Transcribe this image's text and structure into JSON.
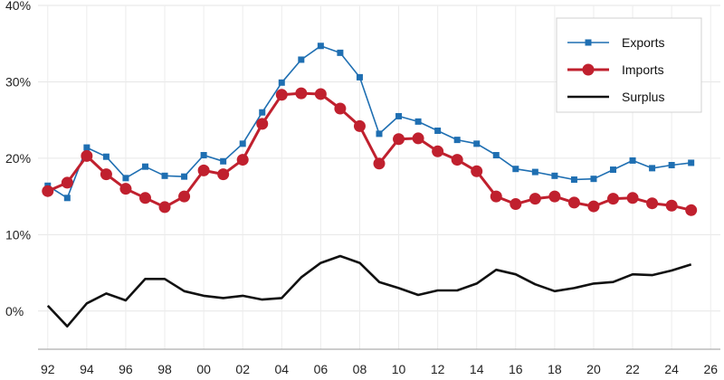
{
  "chart_data": {
    "type": "line",
    "title": "",
    "xlabel": "",
    "ylabel": "",
    "x": [
      1992,
      1993,
      1994,
      1995,
      1996,
      1997,
      1998,
      1999,
      2000,
      2001,
      2002,
      2003,
      2004,
      2005,
      2006,
      2007,
      2008,
      2009,
      2010,
      2011,
      2012,
      2013,
      2014,
      2015,
      2016,
      2017,
      2018,
      2019,
      2020,
      2021,
      2022,
      2023,
      2024,
      2025
    ],
    "xlim": [
      1991.5,
      2026.5
    ],
    "ylim": [
      -5,
      40
    ],
    "y_ticks": [
      {
        "value": 0,
        "label": "0%"
      },
      {
        "value": 10,
        "label": "10%"
      },
      {
        "value": 20,
        "label": "20%"
      },
      {
        "value": 30,
        "label": "30%"
      },
      {
        "value": 40,
        "label": "40%"
      }
    ],
    "x_ticks": [
      {
        "value": 1992,
        "label": "92"
      },
      {
        "value": 1994,
        "label": "94"
      },
      {
        "value": 1996,
        "label": "96"
      },
      {
        "value": 1998,
        "label": "98"
      },
      {
        "value": 2000,
        "label": "00"
      },
      {
        "value": 2002,
        "label": "02"
      },
      {
        "value": 2004,
        "label": "04"
      },
      {
        "value": 2006,
        "label": "06"
      },
      {
        "value": 2008,
        "label": "08"
      },
      {
        "value": 2010,
        "label": "10"
      },
      {
        "value": 2012,
        "label": "12"
      },
      {
        "value": 2014,
        "label": "14"
      },
      {
        "value": 2016,
        "label": "16"
      },
      {
        "value": 2018,
        "label": "18"
      },
      {
        "value": 2020,
        "label": "20"
      },
      {
        "value": 2022,
        "label": "22"
      },
      {
        "value": 2024,
        "label": "24"
      },
      {
        "value": 2026,
        "label": "26"
      }
    ],
    "grid": true,
    "legend_position": "top-right",
    "series": [
      {
        "name": "Exports",
        "color": "#1f6fb2",
        "marker": "square",
        "values": [
          16.4,
          14.8,
          21.4,
          20.2,
          17.4,
          18.9,
          17.7,
          17.6,
          20.4,
          19.6,
          21.9,
          26.0,
          29.9,
          32.9,
          34.7,
          33.8,
          30.6,
          23.2,
          25.5,
          24.8,
          23.6,
          22.4,
          21.9,
          20.4,
          18.6,
          18.2,
          17.7,
          17.2,
          17.3,
          18.5,
          19.7,
          18.7,
          19.1,
          19.4
        ]
      },
      {
        "name": "Imports",
        "color": "#c0202e",
        "marker": "circle",
        "values": [
          15.7,
          16.8,
          20.3,
          17.9,
          16.0,
          14.8,
          13.6,
          15.0,
          18.4,
          17.9,
          19.8,
          24.5,
          28.3,
          28.5,
          28.4,
          26.5,
          24.2,
          19.3,
          22.5,
          22.6,
          20.9,
          19.8,
          18.3,
          15.0,
          14.0,
          14.7,
          15.0,
          14.2,
          13.7,
          14.7,
          14.8,
          14.1,
          13.8,
          13.2
        ]
      },
      {
        "name": "Surplus",
        "color": "#111111",
        "marker": "none",
        "values": [
          0.7,
          -2.0,
          1.0,
          2.3,
          1.4,
          4.2,
          4.2,
          2.6,
          2.0,
          1.7,
          2.0,
          1.5,
          1.7,
          4.4,
          6.3,
          7.2,
          6.3,
          3.8,
          3.0,
          2.1,
          2.7,
          2.7,
          3.6,
          5.4,
          4.8,
          3.5,
          2.6,
          3.0,
          3.6,
          3.8,
          4.8,
          4.7,
          5.3,
          6.1
        ]
      }
    ]
  }
}
